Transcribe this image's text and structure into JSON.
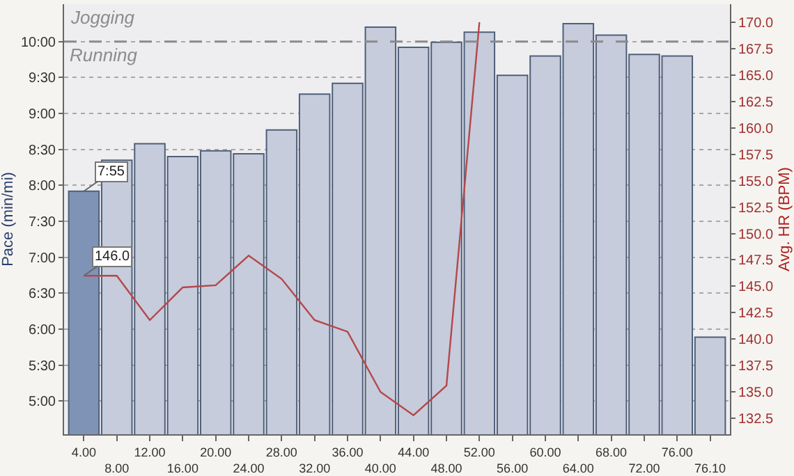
{
  "chart_data": {
    "type": "bar",
    "ylabel": "Pace (min/mi)",
    "y2label": "Avg. HR (BPM)",
    "categories": [
      "4.00",
      "8.00",
      "12.00",
      "16.00",
      "20.00",
      "24.00",
      "28.00",
      "32.00",
      "36.00",
      "40.00",
      "44.00",
      "48.00",
      "52.00",
      "56.00",
      "60.00",
      "64.00",
      "68.00",
      "72.00",
      "76.00",
      "76.10"
    ],
    "series": [
      {
        "colors": [
          "#7f93b6",
          "#c6ccdb",
          "#c6ccdb",
          "#c6ccdb",
          "#c6ccdb",
          "#c6ccdb",
          "#c6ccdb",
          "#c6ccdb",
          "#c6ccdb",
          "#c6ccdb",
          "#c6ccdb",
          "#c6ccdb",
          "#c6ccdb",
          "#c6ccdb",
          "#c6ccdb",
          "#c6ccdb",
          "#c6ccdb",
          "#c6ccdb",
          "#c6ccdb",
          "#c6ccdb"
        ],
        "values": [
          7.92,
          8.35,
          8.58,
          8.4,
          8.48,
          8.44,
          8.77,
          9.27,
          9.42,
          10.2,
          9.92,
          9.99,
          10.13,
          9.53,
          9.8,
          10.25,
          10.09,
          9.82,
          9.8,
          5.89
        ]
      },
      {
        "type": "line",
        "axis": "y2",
        "color": "#b5474a",
        "values": [
          146.0,
          146.0,
          141.8,
          144.9,
          145.1,
          147.9,
          145.7,
          141.8,
          140.7,
          135.0,
          132.8,
          135.6,
          170.0,
          null,
          null,
          null,
          null,
          null,
          null,
          null
        ]
      }
    ],
    "ylim": [
      4.54,
      10.52
    ],
    "yticks": [
      {
        "value": 5,
        "label": "5:00"
      },
      {
        "value": 5.5,
        "label": "5:30"
      },
      {
        "value": 6,
        "label": "6:00"
      },
      {
        "value": 6.5,
        "label": "6:30"
      },
      {
        "value": 7,
        "label": "7:00"
      },
      {
        "value": 7.5,
        "label": "7:30"
      },
      {
        "value": 8,
        "label": "8:00"
      },
      {
        "value": 8.5,
        "label": "8:30"
      },
      {
        "value": 9,
        "label": "9:00"
      },
      {
        "value": 9.5,
        "label": "9:30"
      },
      {
        "value": 10,
        "label": "10:00"
      }
    ],
    "y2lim": [
      131.0,
      171.7
    ],
    "y2ticks": [
      132.5,
      {
        "value": 135,
        "label": "135.0"
      },
      137.5,
      {
        "value": 140,
        "label": "140.0"
      },
      142.5,
      {
        "value": 145,
        "label": "145.0"
      },
      147.5,
      {
        "value": 150,
        "label": "150.0"
      },
      152.5,
      {
        "value": 155,
        "label": "155.0"
      },
      157.5,
      {
        "value": 160,
        "label": "160.0"
      },
      162.5,
      {
        "value": 165,
        "label": "165.0"
      },
      167.5,
      {
        "value": 170,
        "label": "170.0"
      }
    ],
    "ref_lines": [
      {
        "axis": "y",
        "value": 10,
        "label": "Running",
        "color": "#8a8a8a",
        "line_style": "dashed"
      }
    ],
    "annotations": [
      "Jogging",
      {
        "text": "7:55",
        "x": "4.00",
        "y": 7.92
      },
      "146.0"
    ],
    "grid": "y"
  }
}
